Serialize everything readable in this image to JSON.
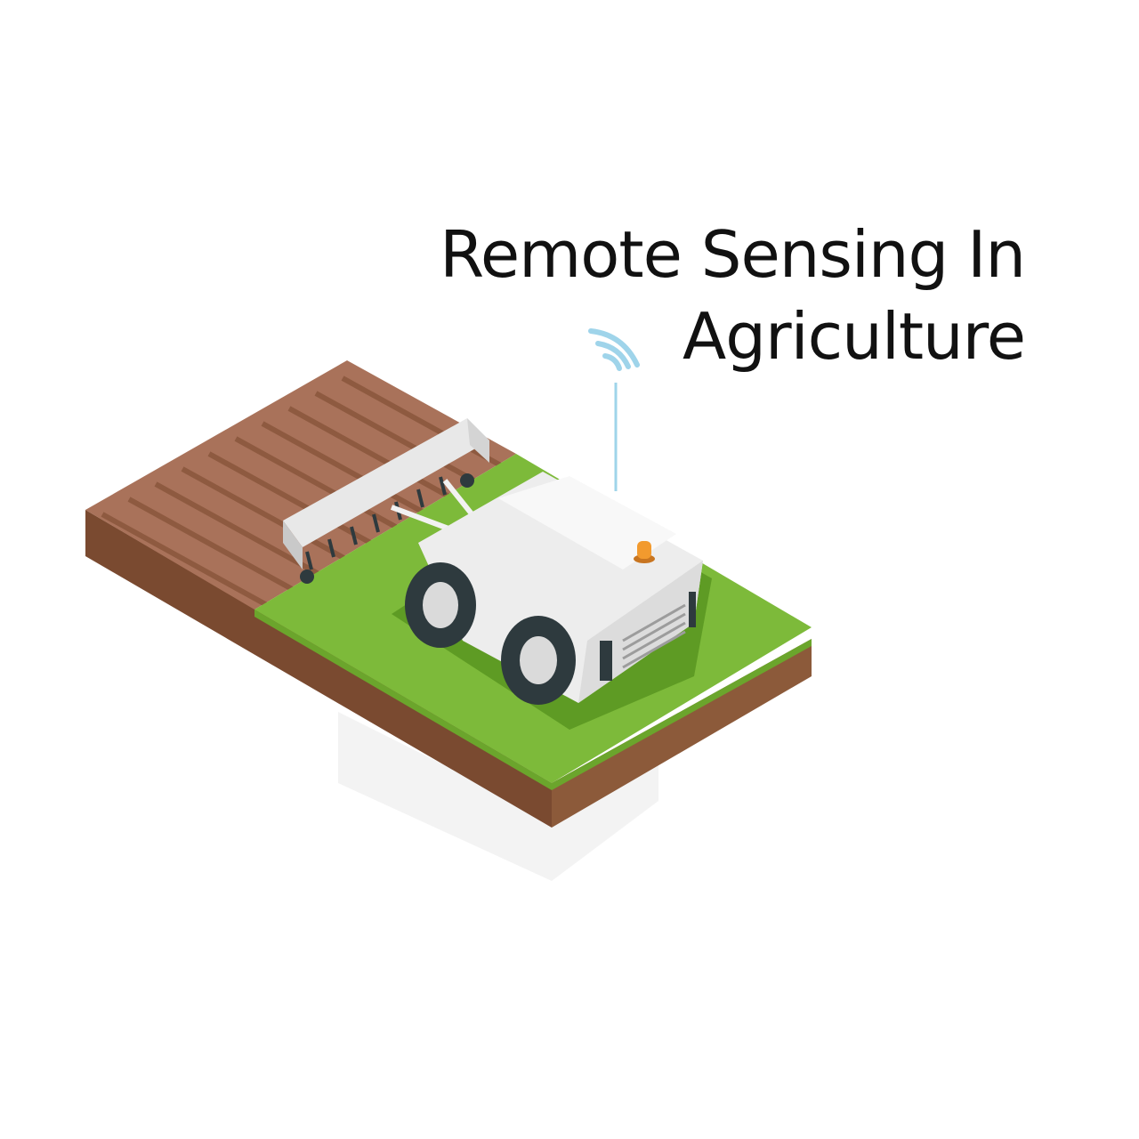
{
  "title": {
    "line1": "Remote Sensing In",
    "line2": "Agriculture"
  },
  "illustration": {
    "subject": "isometric autonomous farm robot towing a cultivator on a field tile",
    "icons": [
      "wifi-signal-icon",
      "beacon-light-icon"
    ]
  },
  "colors": {
    "soil_top": "#A9725A",
    "soil_side": "#7A4A30",
    "grass_top": "#7DBA3A",
    "grass_shadow": "#5E9B24",
    "robot_body": "#EDEDED",
    "signal": "#9FD4EA",
    "beacon": "#F29A2E",
    "text": "#111111"
  }
}
